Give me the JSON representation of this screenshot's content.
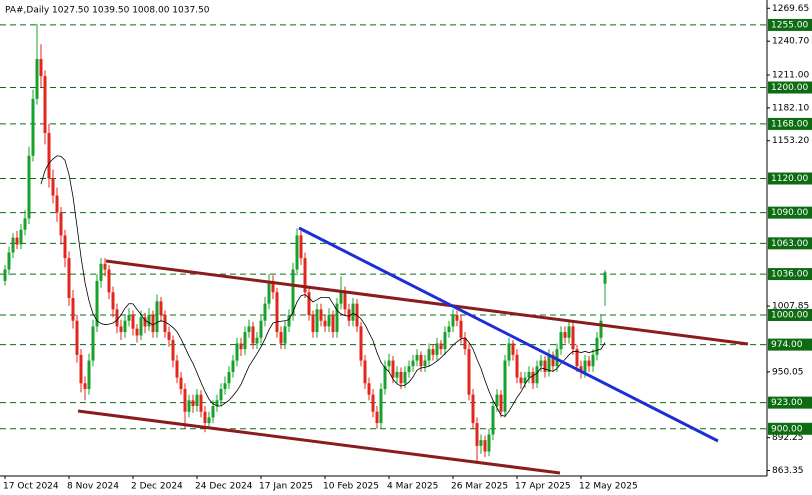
{
  "chart_data": {
    "type": "candlestick",
    "header": "PA#,Daily  1027.50 1039.50 1008.00 1037.50",
    "up_color": "#17a02a",
    "down_color": "#e3261c",
    "ma_color": "#000000",
    "ma_period": 10,
    "level_color": "#0d6b12",
    "ylim": [
      858.5,
      1273.4
    ],
    "yticks": [
      1269.65,
      {
        "value": 1240.7,
        "label": "1240.70"
      },
      {
        "value": 1211,
        "label": "1211.00"
      },
      {
        "value": 1182.1,
        "label": "1182.10"
      },
      {
        "value": 1153.2,
        "label": "1153.20"
      },
      1007.85,
      950.05,
      892.25,
      863.35
    ],
    "xticks": [
      {
        "value": 0,
        "label": "17 Oct 2024"
      },
      {
        "value": 16,
        "label": "8 Nov 2024"
      },
      {
        "value": 32,
        "label": "2 Dec 2024"
      },
      {
        "value": 48,
        "label": "24 Dec 2024"
      },
      {
        "value": 64,
        "label": "17 Jan 2025"
      },
      {
        "value": 80,
        "label": "10 Feb 2025"
      },
      {
        "value": 96,
        "label": "4 Mar 2025"
      },
      {
        "value": 112,
        "label": "26 Mar 2025"
      },
      {
        "value": 128,
        "label": "17 Apr 2025"
      },
      {
        "value": 144,
        "label": "12 May 2025"
      }
    ],
    "levels": [
      {
        "value": 1255,
        "label": "1255.00"
      },
      {
        "value": 1200,
        "label": "1200.00"
      },
      {
        "value": 1168,
        "label": "1168.00"
      },
      {
        "value": 1120,
        "label": "1120.00"
      },
      {
        "value": 1090,
        "label": "1090.00"
      },
      {
        "value": 1063,
        "label": "1063.00"
      },
      {
        "value": 1036,
        "label": "1036.00"
      },
      {
        "value": 1000,
        "label": "1000.00"
      },
      {
        "value": 974,
        "label": "974.00"
      },
      {
        "value": 923,
        "label": "923.00"
      },
      {
        "value": 900,
        "label": "900.00"
      }
    ],
    "ohlc": [
      [
        1030,
        1044,
        1026,
        1040
      ],
      [
        1040,
        1060,
        1035,
        1055
      ],
      [
        1055,
        1072,
        1050,
        1068
      ],
      [
        1068,
        1074,
        1058,
        1062
      ],
      [
        1062,
        1080,
        1058,
        1075
      ],
      [
        1075,
        1092,
        1070,
        1085
      ],
      [
        1085,
        1148,
        1080,
        1140
      ],
      [
        1140,
        1198,
        1135,
        1190
      ],
      [
        1190,
        1256,
        1185,
        1225
      ],
      [
        1225,
        1238,
        1200,
        1210
      ],
      [
        1210,
        1215,
        1150,
        1160
      ],
      [
        1160,
        1168,
        1112,
        1120
      ],
      [
        1120,
        1128,
        1098,
        1105
      ],
      [
        1105,
        1112,
        1082,
        1090
      ],
      [
        1090,
        1095,
        1062,
        1070
      ],
      [
        1070,
        1075,
        1042,
        1050
      ],
      [
        1050,
        1056,
        1008,
        1015
      ],
      [
        1015,
        1022,
        988,
        995
      ],
      [
        995,
        1000,
        958,
        965
      ],
      [
        965,
        970,
        932,
        940
      ],
      [
        940,
        946,
        925,
        935
      ],
      [
        935,
        966,
        930,
        960
      ],
      [
        960,
        996,
        955,
        990
      ],
      [
        990,
        1036,
        985,
        1030
      ],
      [
        1030,
        1050,
        1024,
        1045
      ],
      [
        1045,
        1050,
        1034,
        1040
      ],
      [
        1040,
        1044,
        1014,
        1020
      ],
      [
        1020,
        1025,
        998,
        1005
      ],
      [
        1005,
        1010,
        984,
        990
      ],
      [
        990,
        996,
        978,
        985
      ],
      [
        985,
        1000,
        980,
        995
      ],
      [
        995,
        1006,
        990,
        1000
      ],
      [
        1000,
        1004,
        982,
        988
      ],
      [
        988,
        992,
        976,
        982
      ],
      [
        982,
        1004,
        978,
        998
      ],
      [
        998,
        1002,
        984,
        990
      ],
      [
        990,
        1006,
        986,
        1000
      ],
      [
        1000,
        1004,
        980,
        985
      ],
      [
        985,
        1018,
        980,
        1012
      ],
      [
        1012,
        1016,
        994,
        1000
      ],
      [
        1000,
        1004,
        980,
        985
      ],
      [
        985,
        990,
        972,
        978
      ],
      [
        978,
        982,
        954,
        960
      ],
      [
        960,
        965,
        940,
        945
      ],
      [
        945,
        950,
        930,
        935
      ],
      [
        935,
        940,
        900,
        915
      ],
      [
        915,
        930,
        910,
        925
      ],
      [
        925,
        930,
        914,
        920
      ],
      [
        920,
        935,
        915,
        930
      ],
      [
        930,
        934,
        910,
        915
      ],
      [
        915,
        920,
        897,
        905
      ],
      [
        905,
        915,
        900,
        910
      ],
      [
        910,
        925,
        905,
        920
      ],
      [
        920,
        930,
        915,
        925
      ],
      [
        925,
        940,
        920,
        935
      ],
      [
        935,
        946,
        930,
        940
      ],
      [
        940,
        955,
        935,
        950
      ],
      [
        950,
        965,
        945,
        960
      ],
      [
        960,
        980,
        955,
        975
      ],
      [
        975,
        980,
        964,
        970
      ],
      [
        970,
        990,
        965,
        985
      ],
      [
        985,
        996,
        980,
        990
      ],
      [
        990,
        994,
        970,
        975
      ],
      [
        975,
        985,
        970,
        980
      ],
      [
        980,
        1000,
        975,
        995
      ],
      [
        995,
        1016,
        990,
        1010
      ],
      [
        1010,
        1036,
        1005,
        1030
      ],
      [
        1030,
        1035,
        1014,
        1020
      ],
      [
        1020,
        1024,
        980,
        985
      ],
      [
        985,
        990,
        970,
        975
      ],
      [
        975,
        995,
        970,
        990
      ],
      [
        990,
        1005,
        985,
        1000
      ],
      [
        1000,
        1046,
        995,
        1040
      ],
      [
        1040,
        1076,
        1035,
        1070
      ],
      [
        1070,
        1074,
        1044,
        1050
      ],
      [
        1050,
        1055,
        1015,
        1020
      ],
      [
        1020,
        1025,
        995,
        1000
      ],
      [
        1000,
        1004,
        980,
        985
      ],
      [
        985,
        1010,
        980,
        1005
      ],
      [
        1005,
        1010,
        990,
        995
      ],
      [
        995,
        1000,
        985,
        990
      ],
      [
        990,
        1006,
        985,
        1000
      ],
      [
        1000,
        1004,
        980,
        985
      ],
      [
        985,
        1015,
        980,
        1010
      ],
      [
        1010,
        1034,
        1005,
        1020
      ],
      [
        1020,
        1025,
        1000,
        1005
      ],
      [
        1005,
        1010,
        990,
        995
      ],
      [
        995,
        1015,
        990,
        1010
      ],
      [
        1010,
        1014,
        985,
        990
      ],
      [
        990,
        994,
        955,
        960
      ],
      [
        960,
        965,
        935,
        940
      ],
      [
        940,
        945,
        925,
        930
      ],
      [
        930,
        935,
        910,
        915
      ],
      [
        915,
        920,
        900,
        905
      ],
      [
        905,
        940,
        900,
        935
      ],
      [
        935,
        960,
        930,
        955
      ],
      [
        955,
        966,
        950,
        960
      ],
      [
        960,
        964,
        940,
        945
      ],
      [
        945,
        955,
        940,
        950
      ],
      [
        950,
        954,
        935,
        940
      ],
      [
        940,
        955,
        936,
        950
      ],
      [
        950,
        960,
        945,
        955
      ],
      [
        955,
        965,
        950,
        960
      ],
      [
        960,
        970,
        955,
        965
      ],
      [
        965,
        968,
        950,
        955
      ],
      [
        955,
        965,
        950,
        960
      ],
      [
        960,
        975,
        955,
        970
      ],
      [
        970,
        974,
        960,
        965
      ],
      [
        965,
        980,
        960,
        975
      ],
      [
        975,
        978,
        965,
        970
      ],
      [
        970,
        990,
        965,
        985
      ],
      [
        985,
        995,
        980,
        990
      ],
      [
        990,
        1005,
        985,
        1000
      ],
      [
        1000,
        1004,
        990,
        995
      ],
      [
        995,
        1000,
        975,
        980
      ],
      [
        980,
        985,
        965,
        970
      ],
      [
        970,
        975,
        925,
        930
      ],
      [
        930,
        935,
        900,
        905
      ],
      [
        905,
        910,
        870,
        885
      ],
      [
        885,
        895,
        878,
        890
      ],
      [
        890,
        894,
        875,
        880
      ],
      [
        880,
        900,
        876,
        895
      ],
      [
        895,
        925,
        890,
        920
      ],
      [
        920,
        935,
        915,
        930
      ],
      [
        930,
        934,
        910,
        915
      ],
      [
        915,
        965,
        910,
        960
      ],
      [
        960,
        980,
        955,
        975
      ],
      [
        975,
        978,
        960,
        965
      ],
      [
        965,
        970,
        940,
        945
      ],
      [
        945,
        950,
        935,
        940
      ],
      [
        940,
        950,
        936,
        945
      ],
      [
        945,
        955,
        940,
        950
      ],
      [
        950,
        954,
        935,
        940
      ],
      [
        940,
        960,
        936,
        955
      ],
      [
        955,
        965,
        950,
        960
      ],
      [
        960,
        964,
        945,
        950
      ],
      [
        950,
        970,
        946,
        965
      ],
      [
        965,
        968,
        950,
        955
      ],
      [
        955,
        975,
        950,
        970
      ],
      [
        970,
        990,
        965,
        985
      ],
      [
        985,
        990,
        975,
        980
      ],
      [
        980,
        995,
        975,
        990
      ],
      [
        990,
        994,
        965,
        970
      ],
      [
        970,
        974,
        950,
        955
      ],
      [
        955,
        960,
        944,
        950
      ],
      [
        950,
        965,
        945,
        960
      ],
      [
        960,
        964,
        950,
        955
      ],
      [
        955,
        970,
        950,
        965
      ],
      [
        965,
        985,
        960,
        980
      ],
      [
        980,
        1000,
        975,
        995
      ],
      [
        1027.5,
        1039.5,
        1008,
        1037.5
      ]
    ]
  }
}
